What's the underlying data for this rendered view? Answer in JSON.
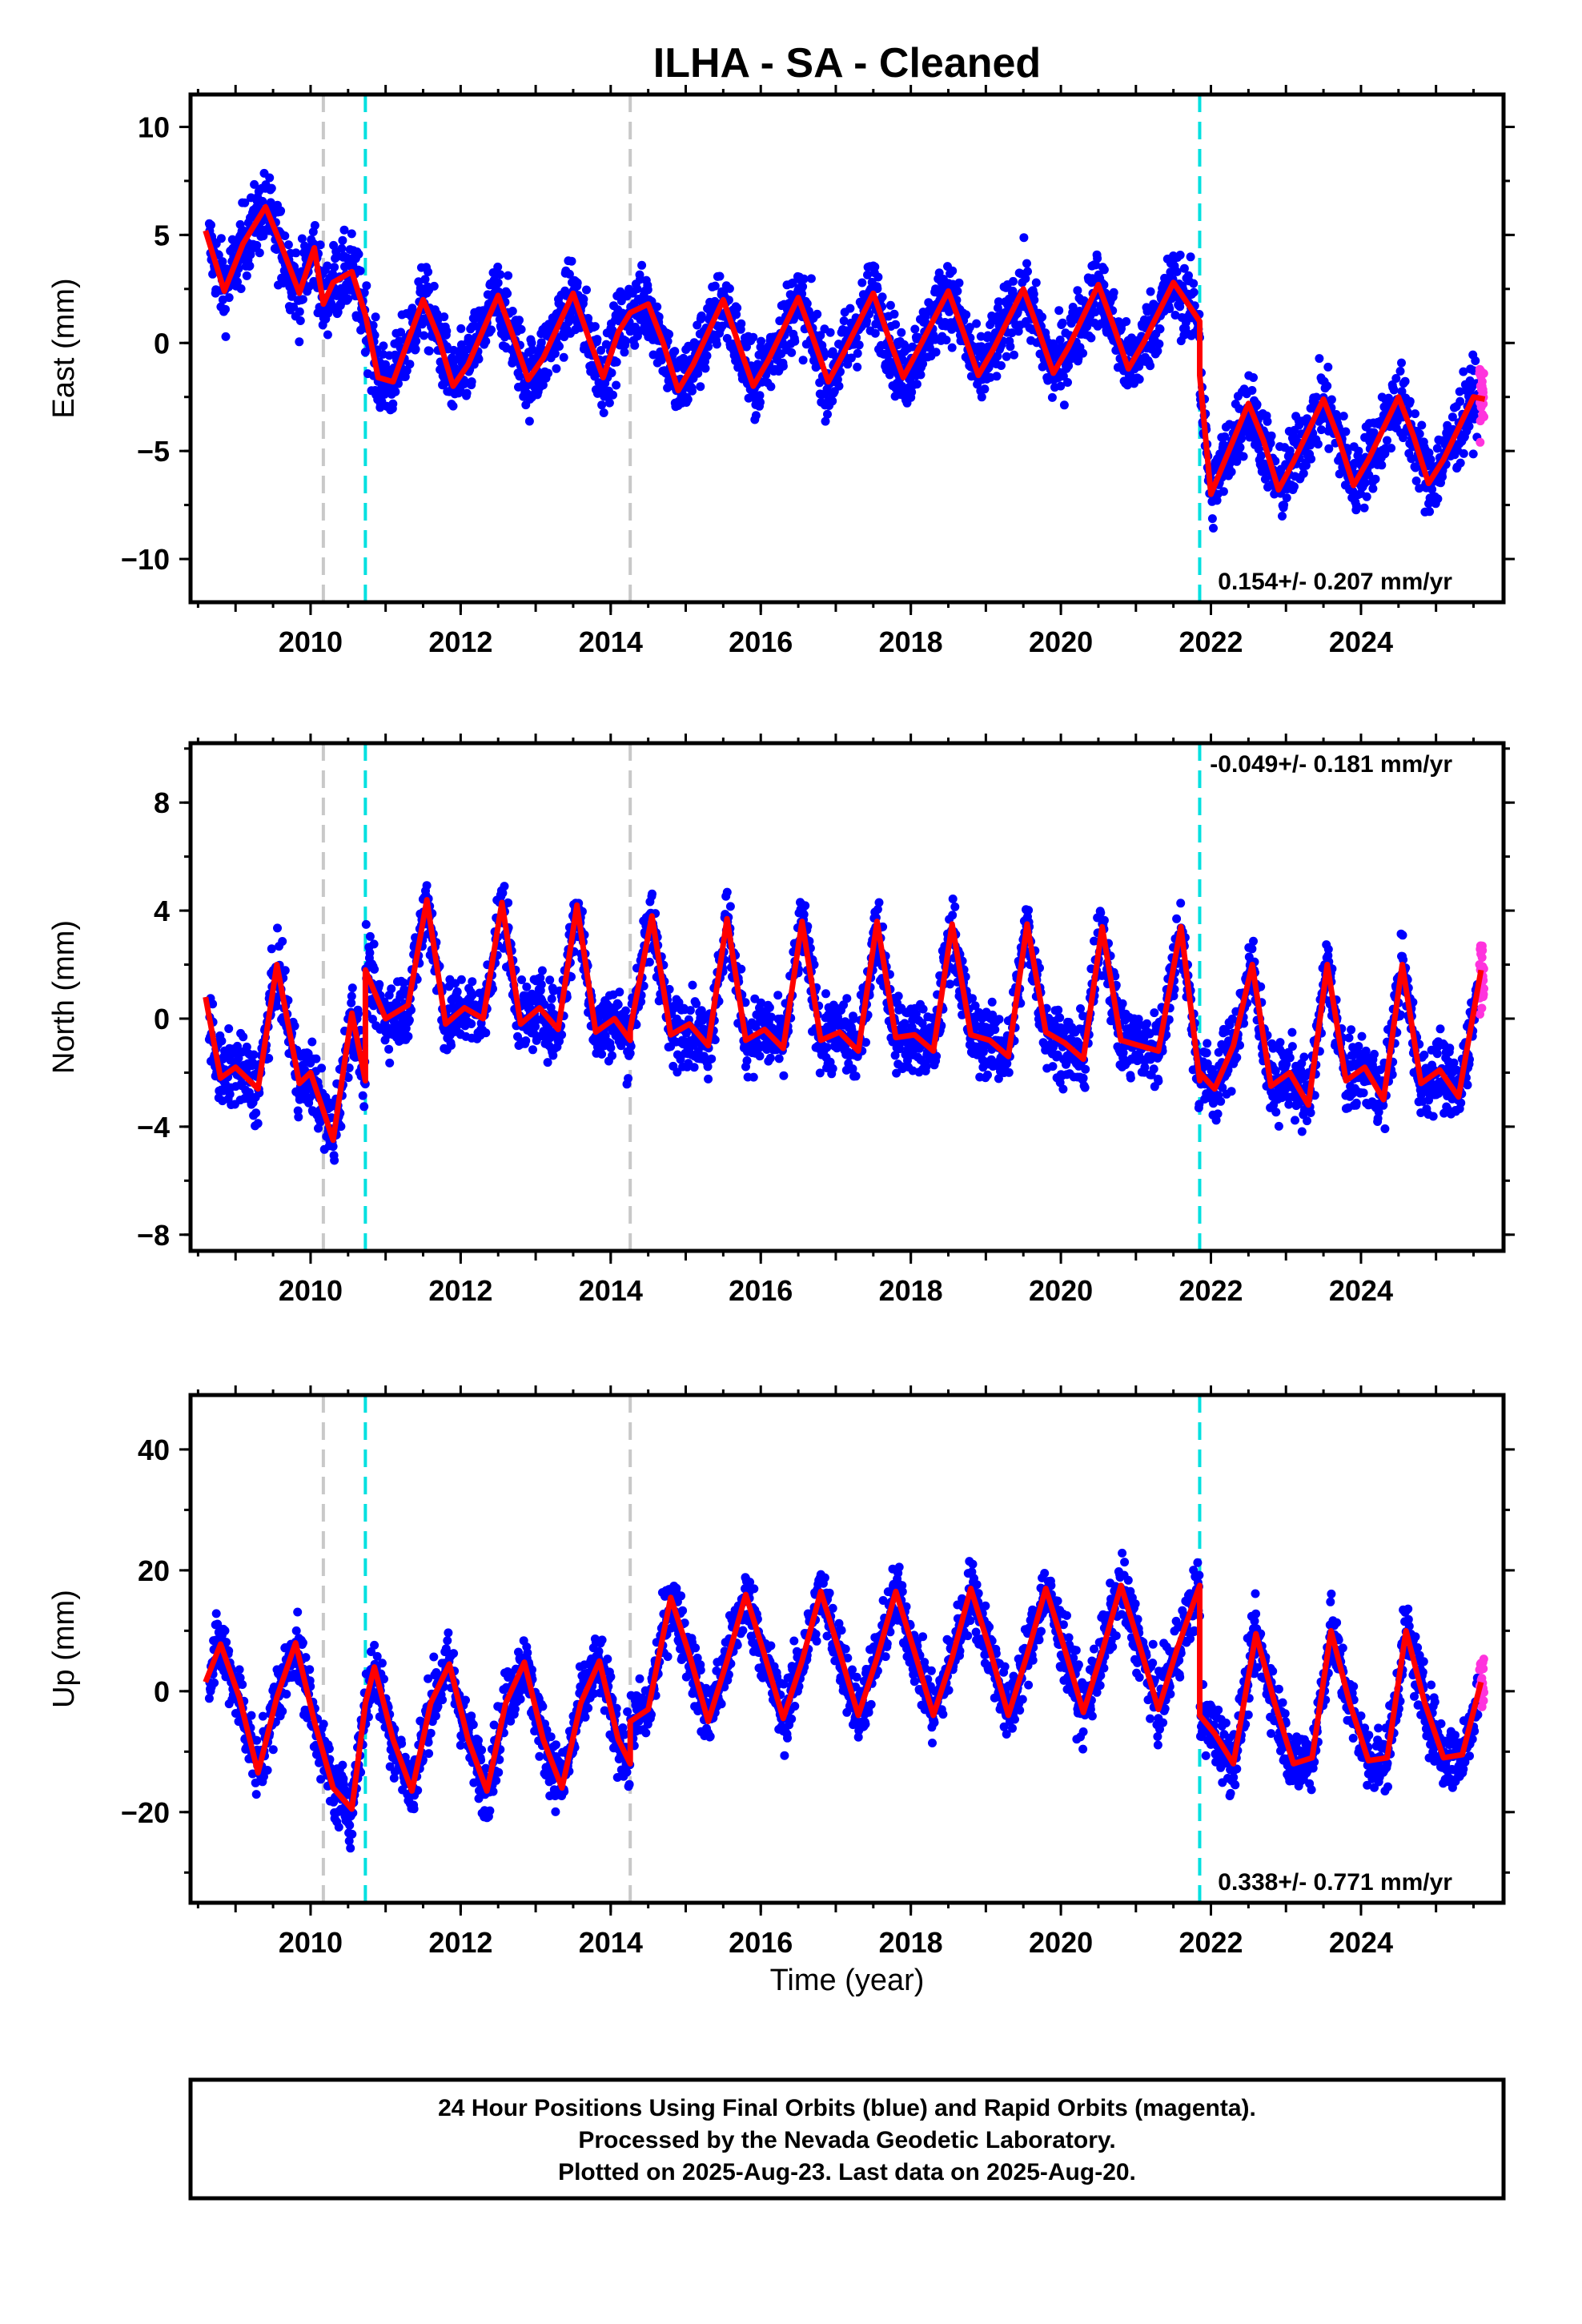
{
  "chart_data": {
    "type": "scatter",
    "title": "ILHA  - SA - Cleaned",
    "xlabel": "Time (year)",
    "xlim": [
      2008.4,
      2025.9
    ],
    "x_ticks": [
      2010,
      2012,
      2014,
      2016,
      2018,
      2020,
      2022,
      2024
    ],
    "colors": {
      "final": "#0000ff",
      "rapid": "#ff33dd",
      "model": "#ff0000",
      "equipment_change": "#c8c8c8",
      "earthquake": "#00e0e0"
    },
    "legend_note": [
      "24 Hour Positions Using Final Orbits (blue) and Rapid Orbits (magenta).",
      "Processed by the Nevada Geodetic Laboratory.",
      "Plotted on 2025-Aug-23. Last data on 2025-Aug-20."
    ],
    "gray_lines": [
      2010.17,
      2014.26
    ],
    "cyan_lines": [
      2010.73,
      2021.85
    ],
    "panels": [
      {
        "ylabel": "East (mm)",
        "ylim": [
          -12,
          11.5
        ],
        "y_ticks": [
          -10,
          -5,
          0,
          5,
          10
        ],
        "y_tick_labels": [
          "−10",
          "−5",
          "0",
          "5",
          "10"
        ],
        "rate_text": "0.154+/- 0.207 mm/yr",
        "rate_pos": "bottom-right",
        "noise": 1.6,
        "model": {
          "x": [
            2008.6,
            2008.85,
            2009.1,
            2009.4,
            2009.6,
            2009.85,
            2010.05,
            2010.17,
            2010.17,
            2010.3,
            2010.55,
            2010.73,
            2010.73,
            2010.9,
            2011.1,
            2011.5,
            2011.7,
            2011.9,
            2012.1,
            2012.5,
            2012.7,
            2012.9,
            2013.1,
            2013.5,
            2013.7,
            2013.9,
            2014.1,
            2014.26,
            2014.26,
            2014.5,
            2014.7,
            2014.9,
            2015.1,
            2015.5,
            2015.7,
            2015.9,
            2016.1,
            2016.5,
            2016.7,
            2016.9,
            2017.1,
            2017.5,
            2017.7,
            2017.9,
            2018.1,
            2018.5,
            2018.7,
            2018.9,
            2019.1,
            2019.5,
            2019.7,
            2019.9,
            2020.1,
            2020.5,
            2020.7,
            2020.9,
            2021.1,
            2021.5,
            2021.85,
            2021.85,
            2022.0,
            2022.5,
            2022.7,
            2022.9,
            2023.1,
            2023.5,
            2023.7,
            2023.9,
            2024.1,
            2024.5,
            2024.7,
            2024.9,
            2025.1,
            2025.5,
            2025.65
          ],
          "y": [
            5.2,
            2.4,
            4.6,
            6.3,
            4.6,
            2.3,
            4.4,
            1.8,
            1.8,
            2.8,
            3.3,
            1.3,
            1.3,
            -1.6,
            -1.8,
            2.0,
            0.3,
            -2.0,
            -1.0,
            2.2,
            0.3,
            -1.7,
            -0.7,
            2.3,
            0.3,
            -1.6,
            0.5,
            1.4,
            1.4,
            1.8,
            0.0,
            -2.2,
            -1.0,
            2.0,
            0.0,
            -2.0,
            -0.8,
            2.1,
            0.2,
            -1.8,
            -0.5,
            2.3,
            0.3,
            -1.6,
            -0.3,
            2.4,
            0.5,
            -1.5,
            -0.3,
            2.5,
            0.6,
            -1.4,
            -0.2,
            2.7,
            0.8,
            -1.2,
            0.0,
            2.8,
            1.0,
            -1.5,
            -7.0,
            -2.8,
            -4.5,
            -6.8,
            -5.5,
            -2.6,
            -4.4,
            -6.6,
            -5.4,
            -2.5,
            -4.3,
            -6.5,
            -5.4,
            -2.5,
            -2.6
          ]
        }
      },
      {
        "ylabel": "North (mm)",
        "ylim": [
          -8.6,
          10.2
        ],
        "y_ticks": [
          -8,
          -4,
          0,
          4,
          8
        ],
        "y_tick_labels": [
          "−8",
          "−4",
          "0",
          "4",
          "8"
        ],
        "rate_text": "-0.049+/- 0.181 mm/yr",
        "rate_pos": "top-right",
        "noise": 1.2,
        "model": {
          "x": [
            2008.6,
            2008.8,
            2009.0,
            2009.3,
            2009.55,
            2009.85,
            2010.0,
            2010.3,
            2010.55,
            2010.73,
            2010.73,
            2011.0,
            2011.3,
            2011.55,
            2011.8,
            2012.05,
            2012.3,
            2012.55,
            2012.8,
            2013.05,
            2013.3,
            2013.55,
            2013.8,
            2014.05,
            2014.26,
            2014.26,
            2014.55,
            2014.8,
            2015.05,
            2015.3,
            2015.55,
            2015.8,
            2016.05,
            2016.3,
            2016.55,
            2016.8,
            2017.05,
            2017.3,
            2017.55,
            2017.8,
            2018.05,
            2018.3,
            2018.55,
            2018.8,
            2019.05,
            2019.3,
            2019.55,
            2019.8,
            2020.05,
            2020.3,
            2020.55,
            2020.8,
            2021.05,
            2021.3,
            2021.6,
            2021.85,
            2021.85,
            2022.05,
            2022.3,
            2022.55,
            2022.8,
            2023.05,
            2023.3,
            2023.55,
            2023.8,
            2024.05,
            2024.3,
            2024.55,
            2024.8,
            2025.05,
            2025.3,
            2025.6
          ],
          "y": [
            0.8,
            -2.2,
            -1.8,
            -2.6,
            2.0,
            -2.4,
            -2.0,
            -4.5,
            0.2,
            -2.3,
            1.8,
            0.0,
            0.5,
            4.4,
            -0.2,
            0.4,
            0.0,
            4.3,
            -0.2,
            0.4,
            -0.4,
            4.2,
            -0.5,
            0.0,
            -0.8,
            -0.4,
            3.8,
            -0.6,
            -0.2,
            -1.0,
            3.7,
            -0.8,
            -0.4,
            -1.1,
            3.6,
            -0.8,
            -0.5,
            -1.2,
            3.6,
            -0.7,
            -0.6,
            -1.2,
            3.5,
            -0.6,
            -0.8,
            -1.4,
            3.5,
            -0.5,
            -0.9,
            -1.5,
            3.4,
            -0.8,
            -1.0,
            -1.2,
            3.4,
            -2.3,
            -2.0,
            -2.6,
            -1.0,
            2.0,
            -2.5,
            -2.0,
            -3.2,
            2.0,
            -2.3,
            -1.8,
            -3.0,
            2.0,
            -2.4,
            -1.9,
            -2.9,
            1.8
          ]
        }
      },
      {
        "ylabel": "Up (mm)",
        "ylim": [
          -35,
          49
        ],
        "y_ticks": [
          -20,
          0,
          20,
          40
        ],
        "y_tick_labels": [
          "−20",
          "0",
          "20",
          "40"
        ],
        "rate_text": "0.338+/- 0.771 mm/yr",
        "rate_pos": "bottom-right",
        "noise": 5,
        "model": {
          "x": [
            2008.6,
            2008.8,
            2009.05,
            2009.3,
            2009.55,
            2009.8,
            2010.05,
            2010.3,
            2010.55,
            2010.73,
            2010.73,
            2010.85,
            2011.1,
            2011.35,
            2011.6,
            2011.85,
            2012.1,
            2012.35,
            2012.6,
            2012.85,
            2013.1,
            2013.35,
            2013.6,
            2013.85,
            2014.1,
            2014.26,
            2014.26,
            2014.5,
            2014.8,
            2015.05,
            2015.3,
            2015.55,
            2015.8,
            2016.05,
            2016.3,
            2016.55,
            2016.8,
            2017.05,
            2017.3,
            2017.55,
            2017.8,
            2018.05,
            2018.3,
            2018.55,
            2018.8,
            2019.05,
            2019.3,
            2019.55,
            2019.8,
            2020.05,
            2020.3,
            2020.55,
            2020.8,
            2021.05,
            2021.3,
            2021.55,
            2021.85,
            2021.85,
            2022.05,
            2022.3,
            2022.6,
            2022.85,
            2023.1,
            2023.35,
            2023.6,
            2023.85,
            2024.1,
            2024.35,
            2024.6,
            2024.85,
            2025.1,
            2025.35,
            2025.6
          ],
          "y": [
            1.5,
            7.8,
            -1.0,
            -13.5,
            -1.0,
            8.0,
            -5.0,
            -16.0,
            -19.5,
            -2.0,
            -2.0,
            4.0,
            -8.0,
            -16.5,
            -2.0,
            4.5,
            -8.0,
            -16.5,
            -2.0,
            4.8,
            -8.0,
            -16.0,
            -2.0,
            5.0,
            -8.0,
            -12.0,
            -5.0,
            -3.0,
            15.5,
            6.0,
            -5.0,
            5.0,
            16.0,
            6.0,
            -4.5,
            5.0,
            16.5,
            6.5,
            -4.0,
            5.5,
            16.5,
            6.5,
            -4.0,
            5.5,
            17.0,
            7.0,
            -4.0,
            6.0,
            17.0,
            7.0,
            -3.5,
            6.5,
            17.5,
            7.5,
            -3.0,
            7.0,
            17.5,
            -4.0,
            -7.0,
            -12.0,
            9.5,
            -2.0,
            -12.0,
            -11.0,
            10.0,
            -2.0,
            -11.5,
            -11.0,
            10.0,
            -2.0,
            -11.0,
            -10.5,
            1.5
          ]
        }
      }
    ]
  }
}
